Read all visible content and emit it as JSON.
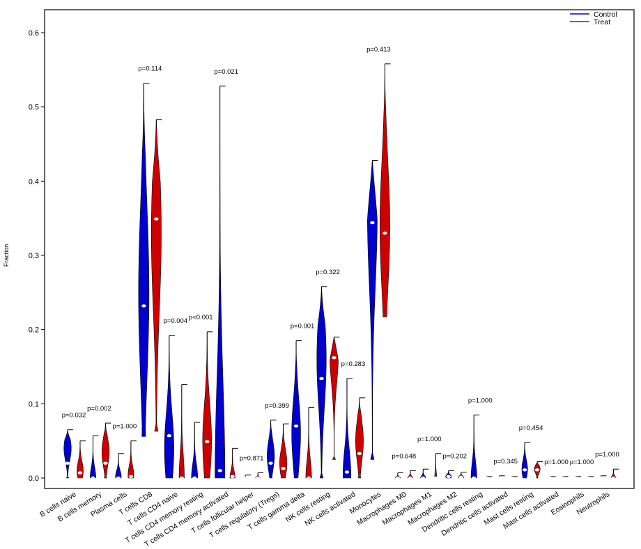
{
  "chart_data": {
    "type": "violin",
    "title": "",
    "xlabel": "",
    "ylabel": "Fraction",
    "ylim": [
      0,
      0.6
    ],
    "yticks": [
      "0.0",
      "0.1",
      "0.2",
      "0.3",
      "0.4",
      "0.5",
      "0.6"
    ],
    "legend": {
      "position": "top-right",
      "entries": [
        {
          "name": "Control",
          "color": "#0000cc"
        },
        {
          "name": "Treat",
          "color": "#cc0000"
        }
      ]
    },
    "categories": [
      {
        "name": "B cells naive",
        "p": "p=0.032",
        "control": {
          "max": 0.065,
          "median": 0.02,
          "peak": 0.04,
          "width": 0.7
        },
        "treat": {
          "max": 0.05,
          "median": 0.007,
          "peak": 0.01,
          "width": 0.6
        }
      },
      {
        "name": "B cells memory",
        "p": "p=0.002",
        "control": {
          "max": 0.057,
          "median": 0.0,
          "peak": 0.0,
          "width": 0.55
        },
        "treat": {
          "max": 0.074,
          "median": 0.02,
          "peak": 0.035,
          "width": 0.7
        }
      },
      {
        "name": "Plasma cells",
        "p": "p=1.000",
        "control": {
          "max": 0.033,
          "median": 0.0,
          "peak": 0.002,
          "width": 0.55
        },
        "treat": {
          "max": 0.05,
          "median": 0.002,
          "peak": 0.004,
          "width": 0.55
        }
      },
      {
        "name": "T cells CD8",
        "p": "p=0.114",
        "control": {
          "max": 0.532,
          "median": 0.232,
          "peak": 0.25,
          "width": 1.0,
          "min": 0.056
        },
        "treat": {
          "max": 0.483,
          "median": 0.349,
          "peak": 0.33,
          "width": 0.95,
          "min": 0.063
        }
      },
      {
        "name": "T cells CD4 naive",
        "p": "p=0.004",
        "control": {
          "max": 0.192,
          "median": 0.057,
          "peak": 0.04,
          "width": 0.9
        },
        "treat": {
          "max": 0.126,
          "median": 0.0,
          "peak": 0.0,
          "width": 0.5
        }
      },
      {
        "name": "T cells CD4 memory resting",
        "p": "p<0.001",
        "control": {
          "max": 0.075,
          "median": 0.0,
          "peak": 0.0,
          "width": 0.6
        },
        "treat": {
          "max": 0.197,
          "median": 0.049,
          "peak": 0.05,
          "width": 0.85
        }
      },
      {
        "name": "T cells CD4 memory activated",
        "p": "p=0.021",
        "control": {
          "max": 0.528,
          "median": 0.01,
          "peak": 0.0,
          "width": 0.95
        },
        "treat": {
          "max": 0.04,
          "median": 0.002,
          "peak": 0.0,
          "width": 0.5
        }
      },
      {
        "name": "T cells follicular helper",
        "p": "p=0.871",
        "control": {
          "max": 0.004,
          "median": 0.0,
          "peak": 0.0,
          "width": 0.4
        },
        "treat": {
          "max": 0.007,
          "median": 0.0,
          "peak": 0.0,
          "width": 0.45
        }
      },
      {
        "name": "T cells regulatory (Tregs)",
        "p": "p=0.399",
        "control": {
          "max": 0.078,
          "median": 0.02,
          "peak": 0.03,
          "width": 0.7
        },
        "treat": {
          "max": 0.073,
          "median": 0.013,
          "peak": 0.02,
          "width": 0.7
        }
      },
      {
        "name": "T cells gamma delta",
        "p": "p=0.001",
        "control": {
          "max": 0.185,
          "median": 0.07,
          "peak": 0.06,
          "width": 0.85
        },
        "treat": {
          "max": 0.095,
          "median": 0.0,
          "peak": 0.0,
          "width": 0.55
        }
      },
      {
        "name": "NK cells resting",
        "p": "p=0.322",
        "control": {
          "max": 0.258,
          "median": 0.134,
          "peak": 0.16,
          "width": 0.9,
          "min": 0.0
        },
        "treat": {
          "max": 0.19,
          "median": 0.162,
          "peak": 0.17,
          "width": 0.85,
          "min": 0.025
        }
      },
      {
        "name": "NK cells activated",
        "p": "p=0.283",
        "control": {
          "max": 0.134,
          "median": 0.008,
          "peak": 0.005,
          "width": 0.75
        },
        "treat": {
          "max": 0.108,
          "median": 0.033,
          "peak": 0.05,
          "width": 0.75
        }
      },
      {
        "name": "Monocytes",
        "p": "p=0.413",
        "control": {
          "max": 0.428,
          "median": 0.344,
          "peak": 0.36,
          "width": 0.95,
          "min": 0.025
        },
        "treat": {
          "max": 0.558,
          "median": 0.33,
          "peak": 0.34,
          "width": 0.95,
          "min": 0.217
        }
      },
      {
        "name": "Macrophages M0",
        "p": "p=0.648",
        "control": {
          "max": 0.007,
          "median": 0.0,
          "peak": 0.0,
          "width": 0.5
        },
        "treat": {
          "max": 0.01,
          "median": 0.0,
          "peak": 0.0,
          "width": 0.5
        }
      },
      {
        "name": "Macrophages M1",
        "p": "p=1.000",
        "control": {
          "max": 0.012,
          "median": 0.0,
          "peak": 0.0,
          "width": 0.5
        },
        "treat": {
          "max": 0.033,
          "median": 0.0,
          "peak": 0.0,
          "width": 0.2
        }
      },
      {
        "name": "Macrophages M2",
        "p": "p=0.202",
        "control": {
          "max": 0.01,
          "median": 0.002,
          "peak": 0.002,
          "width": 0.55
        },
        "treat": {
          "max": 0.008,
          "median": 0.001,
          "peak": 0.001,
          "width": 0.5
        }
      },
      {
        "name": "Dendritic cells resting",
        "p": "p=1.000",
        "control": {
          "max": 0.085,
          "median": 0.0,
          "peak": 0.0,
          "width": 0.55
        },
        "treat": {
          "max": 0.002,
          "median": 0.0,
          "peak": 0.0,
          "width": 0.3
        }
      },
      {
        "name": "Dendritic cells activated",
        "p": "p=0.345",
        "control": {
          "max": 0.003,
          "median": 0.0,
          "peak": 0.0,
          "width": 0.3
        },
        "treat": {
          "max": 0.002,
          "median": 0.0,
          "peak": 0.0,
          "width": 0.3
        }
      },
      {
        "name": "Mast cells resting",
        "p": "p=0.454",
        "control": {
          "max": 0.048,
          "median": 0.011,
          "peak": 0.012,
          "width": 0.55
        },
        "treat": {
          "max": 0.022,
          "median": 0.011,
          "peak": 0.012,
          "width": 0.55
        }
      },
      {
        "name": "Mast cells activated",
        "p": "p=1.000",
        "control": {
          "max": 0.002,
          "median": 0.0,
          "peak": 0.0,
          "width": 0.3
        },
        "treat": {
          "max": 0.002,
          "median": 0.0,
          "peak": 0.0,
          "width": 0.3
        }
      },
      {
        "name": "Eosinophils",
        "p": "p=1.000",
        "control": {
          "max": 0.002,
          "median": 0.0,
          "peak": 0.0,
          "width": 0.3
        },
        "treat": {
          "max": 0.002,
          "median": 0.0,
          "peak": 0.0,
          "width": 0.3
        }
      },
      {
        "name": "Neutrophils",
        "p": "p=1.000",
        "control": {
          "max": 0.003,
          "median": 0.0,
          "peak": 0.0,
          "width": 0.3
        },
        "treat": {
          "max": 0.012,
          "median": 0.0,
          "peak": 0.0,
          "width": 0.45
        }
      }
    ]
  }
}
